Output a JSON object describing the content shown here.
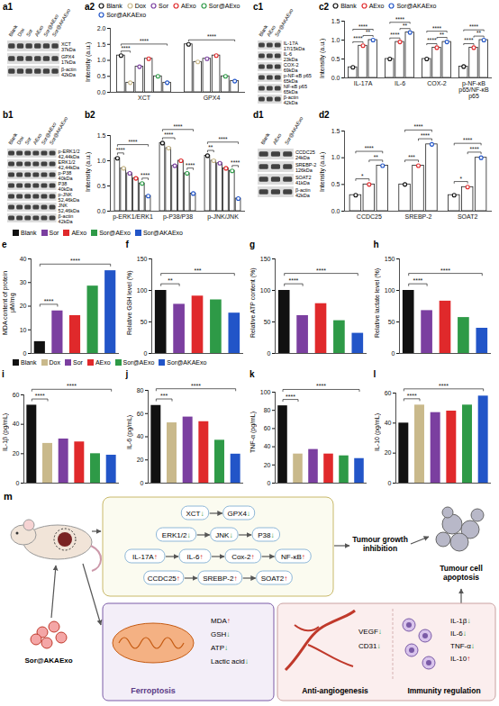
{
  "chart_data": [
    {
      "panel": "a2",
      "type": "bar",
      "ylabel": "Intensity (a.u.)",
      "legend": "top",
      "marker": "circle",
      "categories": [
        "XCT",
        "GPX4"
      ],
      "series": [
        {
          "name": "Blank",
          "color": "#111111",
          "values": [
            1.15,
            1.5
          ]
        },
        {
          "name": "Dox",
          "color": "#c9b98b",
          "values": [
            0.3,
            0.95
          ]
        },
        {
          "name": "Sor",
          "color": "#7b3fa0",
          "values": [
            0.8,
            1.05
          ]
        },
        {
          "name": "AExo",
          "color": "#e0292b",
          "values": [
            1.05,
            1.15
          ]
        },
        {
          "name": "Sor@AExo",
          "color": "#2e9a47",
          "values": [
            0.5,
            0.5
          ]
        },
        {
          "name": "Sor@AKAExo",
          "color": "#2255c8",
          "values": [
            0.3,
            0.35
          ]
        }
      ],
      "ylim": [
        0,
        2
      ],
      "yticks": [
        {
          "value": 0,
          "label": "0.0"
        },
        0.5,
        {
          "value": 1,
          "label": "1.0"
        },
        1.5,
        {
          "value": 2,
          "label": "2.0"
        }
      ],
      "significance": [
        {
          "category": "XCT",
          "from": "Blank",
          "to": "Dox",
          "label": "****"
        },
        {
          "category": "XCT",
          "from": "Blank",
          "to": "Sor@AKAExo",
          "label": "****"
        },
        {
          "category": "GPX4",
          "from": "Blank",
          "to": "Sor@AKAExo",
          "label": "****"
        }
      ]
    },
    {
      "panel": "b2",
      "type": "bar",
      "ylabel": "Intensity (a.u.)",
      "marker": "circle",
      "categories": [
        "p-ERK1/ERK1",
        "p-P38/P38",
        "p-JNK/JNK"
      ],
      "series": [
        {
          "name": "Blank",
          "color": "#111111",
          "values": [
            1.05,
            1.35,
            1.1
          ]
        },
        {
          "name": "Dox",
          "color": "#c9b98b",
          "values": [
            0.85,
            1.25,
            1.0
          ]
        },
        {
          "name": "Sor",
          "color": "#7b3fa0",
          "values": [
            0.75,
            0.9,
            0.95
          ]
        },
        {
          "name": "AExo",
          "color": "#e0292b",
          "values": [
            0.65,
            1.0,
            0.85
          ]
        },
        {
          "name": "Sor@AExo",
          "color": "#2e9a47",
          "values": [
            0.55,
            0.75,
            0.8
          ]
        },
        {
          "name": "Sor@AKAExo",
          "color": "#2255c8",
          "values": [
            0.3,
            0.35,
            0.25
          ]
        }
      ],
      "ylim": [
        0,
        1.5
      ],
      "yticks": [
        {
          "value": 0,
          "label": "0.0"
        },
        0.5,
        {
          "value": 1,
          "label": "1.0"
        },
        1.5
      ],
      "significance": [
        {
          "category": "p-ERK1/ERK1",
          "from": "Blank",
          "to": "Dox",
          "label": "****"
        },
        {
          "category": "p-ERK1/ERK1",
          "from": "Blank",
          "to": "Sor@AKAExo",
          "label": "****"
        },
        {
          "category": "p-ERK1/ERK1",
          "from": "Sor@AExo",
          "to": "Sor@AKAExo",
          "label": "****"
        },
        {
          "category": "p-P38/P38",
          "from": "Blank",
          "to": "Sor",
          "label": "****"
        },
        {
          "category": "p-P38/P38",
          "from": "Blank",
          "to": "Sor@AKAExo",
          "label": "****"
        },
        {
          "category": "p-P38/P38",
          "from": "Sor@AExo",
          "to": "Sor@AKAExo",
          "label": "****"
        },
        {
          "category": "p-JNK/JNK",
          "from": "Blank",
          "to": "Dox",
          "label": "**"
        },
        {
          "category": "p-JNK/JNK",
          "from": "Blank",
          "to": "Sor@AKAExo",
          "label": "****"
        },
        {
          "category": "p-JNK/JNK",
          "from": "Sor@AExo",
          "to": "Sor@AKAExo",
          "label": "****"
        }
      ]
    },
    {
      "panel": "c2",
      "type": "bar",
      "ylabel": "Intensity (a.u.)",
      "legend": "top",
      "marker": "circle",
      "categories": [
        "IL-17A",
        "IL-6",
        "COX-2",
        "p-NF-κB p65/NF-κB p65"
      ],
      "series": [
        {
          "name": "Blank",
          "color": "#111111",
          "values": [
            0.28,
            0.5,
            0.5,
            0.3
          ]
        },
        {
          "name": "AExo",
          "color": "#e0292b",
          "values": [
            0.85,
            0.95,
            0.8,
            0.8
          ]
        },
        {
          "name": "Sor@AKAExo",
          "color": "#2255c8",
          "values": [
            1.0,
            1.2,
            0.95,
            1.0
          ]
        }
      ],
      "ylim": [
        0,
        1.5
      ],
      "yticks": [
        {
          "value": 0,
          "label": "0.0"
        },
        0.5,
        {
          "value": 1,
          "label": "1.0"
        },
        1.5
      ],
      "significance": [
        {
          "category": "IL-17A",
          "from": "Blank",
          "to": "AExo",
          "label": "****"
        },
        {
          "category": "IL-17A",
          "from": "Blank",
          "to": "Sor@AKAExo",
          "label": "****"
        },
        {
          "category": "IL-17A",
          "from": "AExo",
          "to": "Sor@AKAExo",
          "label": "**"
        },
        {
          "category": "IL-6",
          "from": "Blank",
          "to": "AExo",
          "label": "****"
        },
        {
          "category": "IL-6",
          "from": "Blank",
          "to": "Sor@AKAExo",
          "label": "****"
        },
        {
          "category": "IL-6",
          "from": "AExo",
          "to": "Sor@AKAExo",
          "label": "**"
        },
        {
          "category": "COX-2",
          "from": "Blank",
          "to": "AExo",
          "label": "****"
        },
        {
          "category": "COX-2",
          "from": "Blank",
          "to": "Sor@AKAExo",
          "label": "****"
        },
        {
          "category": "COX-2",
          "from": "AExo",
          "to": "Sor@AKAExo",
          "label": "**"
        },
        {
          "category": "p-NF-κB p65/NF-κB p65",
          "from": "Blank",
          "to": "AExo",
          "label": "****"
        },
        {
          "category": "p-NF-κB p65/NF-κB p65",
          "from": "Blank",
          "to": "Sor@AKAExo",
          "label": "****"
        },
        {
          "category": "p-NF-κB p65/NF-κB p65",
          "from": "AExo",
          "to": "Sor@AKAExo",
          "label": "**"
        }
      ]
    },
    {
      "panel": "d2",
      "type": "bar",
      "ylabel": "Intensity (a.u.)",
      "marker": "circle",
      "categories": [
        "CCDC25",
        "SREBP-2",
        "SOAT2"
      ],
      "series": [
        {
          "name": "Blank",
          "color": "#111111",
          "values": [
            0.3,
            0.5,
            0.3
          ]
        },
        {
          "name": "AExo",
          "color": "#e0292b",
          "values": [
            0.5,
            0.85,
            0.45
          ]
        },
        {
          "name": "Sor@AKAExo",
          "color": "#2255c8",
          "values": [
            0.85,
            1.25,
            1.0
          ]
        }
      ],
      "ylim": [
        0,
        1.5
      ],
      "yticks": [
        {
          "value": 0,
          "label": "0.0"
        },
        0.5,
        {
          "value": 1,
          "label": "1.0"
        },
        1.5
      ],
      "significance": [
        {
          "category": "CCDC25",
          "from": "Blank",
          "to": "AExo",
          "label": "*"
        },
        {
          "category": "CCDC25",
          "from": "Blank",
          "to": "Sor@AKAExo",
          "label": "****"
        },
        {
          "category": "CCDC25",
          "from": "AExo",
          "to": "Sor@AKAExo",
          "label": "**"
        },
        {
          "category": "SREBP-2",
          "from": "Blank",
          "to": "AExo",
          "label": "***"
        },
        {
          "category": "SREBP-2",
          "from": "Blank",
          "to": "Sor@AKAExo",
          "label": "****"
        },
        {
          "category": "SREBP-2",
          "from": "AExo",
          "to": "Sor@AKAExo",
          "label": "****"
        },
        {
          "category": "SOAT2",
          "from": "Blank",
          "to": "AExo",
          "label": "*"
        },
        {
          "category": "SOAT2",
          "from": "Blank",
          "to": "Sor@AKAExo",
          "label": "****"
        },
        {
          "category": "SOAT2",
          "from": "AExo",
          "to": "Sor@AKAExo",
          "label": "****"
        }
      ]
    },
    {
      "panel": "e",
      "type": "bar",
      "ylabel": "MDA content of protein μM/mg",
      "legend": "top",
      "tick_labels": "y",
      "categories": [
        "Blank",
        "Sor",
        "AExo",
        "Sor@AExo",
        "Sor@AKAExo"
      ],
      "colors": [
        "#111111",
        "#7b3fa0",
        "#e0292b",
        "#2e9a47",
        "#2255c8"
      ],
      "values": [
        5,
        18,
        16,
        28.5,
        35
      ],
      "ylim": [
        0,
        40
      ],
      "yticks": [
        0,
        10,
        20,
        30,
        40
      ],
      "significance": [
        {
          "from": "Blank",
          "to": "Sor",
          "label": "****"
        },
        {
          "from": "Blank",
          "to": "Sor@AKAExo",
          "label": "****"
        }
      ]
    },
    {
      "panel": "f",
      "type": "bar",
      "ylabel": "Relative GSH level (%)",
      "tick_labels": "y",
      "categories": [
        "Blank",
        "Sor",
        "AExo",
        "Sor@AExo",
        "Sor@AKAExo"
      ],
      "colors": [
        "#111111",
        "#7b3fa0",
        "#e0292b",
        "#2e9a47",
        "#2255c8"
      ],
      "values": [
        100,
        78,
        91,
        85,
        64
      ],
      "ylim": [
        0,
        150
      ],
      "yticks": [
        0,
        50,
        100,
        150
      ],
      "significance": [
        {
          "from": "Blank",
          "to": "Sor",
          "label": "**"
        },
        {
          "from": "Blank",
          "to": "Sor@AKAExo",
          "label": "***"
        }
      ]
    },
    {
      "panel": "g",
      "type": "bar",
      "ylabel": "Relative ATP content (%)",
      "tick_labels": "y",
      "categories": [
        "Blank",
        "Sor",
        "AExo",
        "Sor@AExo",
        "Sor@AKAExo"
      ],
      "colors": [
        "#111111",
        "#7b3fa0",
        "#e0292b",
        "#2e9a47",
        "#2255c8"
      ],
      "values": [
        100,
        60,
        79,
        52,
        32
      ],
      "ylim": [
        0,
        150
      ],
      "yticks": [
        0,
        50,
        100,
        150
      ],
      "significance": [
        {
          "from": "Blank",
          "to": "Sor",
          "label": "****"
        },
        {
          "from": "Blank",
          "to": "Sor@AKAExo",
          "label": "****"
        }
      ]
    },
    {
      "panel": "h",
      "type": "bar",
      "ylabel": "Relative lactate level (%)",
      "tick_labels": "y",
      "categories": [
        "Blank",
        "Sor",
        "AExo",
        "Sor@AExo",
        "Sor@AKAExo"
      ],
      "colors": [
        "#111111",
        "#7b3fa0",
        "#e0292b",
        "#2e9a47",
        "#2255c8"
      ],
      "values": [
        100,
        68,
        83,
        57,
        40
      ],
      "ylim": [
        0,
        150
      ],
      "yticks": [
        0,
        50,
        100,
        150
      ],
      "significance": [
        {
          "from": "Blank",
          "to": "Sor",
          "label": "****"
        },
        {
          "from": "Blank",
          "to": "Sor@AKAExo",
          "label": "****"
        }
      ]
    },
    {
      "panel": "i",
      "type": "bar",
      "ylabel": "IL-1β (pg/mL)",
      "legend": "top",
      "tick_labels": "y",
      "categories": [
        "Blank",
        "Dox",
        "Sor",
        "AExo",
        "Sor@AExo",
        "Sor@AKAExo"
      ],
      "colors": [
        "#111111",
        "#c9b98b",
        "#7b3fa0",
        "#e0292b",
        "#2e9a47",
        "#2255c8"
      ],
      "values": [
        53,
        27,
        30,
        28,
        20,
        19
      ],
      "ylim": [
        0,
        60
      ],
      "yticks": [
        0,
        20,
        40,
        60
      ],
      "significance": [
        {
          "from": "Blank",
          "to": "Dox",
          "label": "****"
        },
        {
          "from": "Blank",
          "to": "Sor@AKAExo",
          "label": "****"
        }
      ]
    },
    {
      "panel": "j",
      "type": "bar",
      "ylabel": "IL-6 (pg/mL)",
      "tick_labels": "y",
      "categories": [
        "Blank",
        "Dox",
        "Sor",
        "AExo",
        "Sor@AExo",
        "Sor@AKAExo"
      ],
      "colors": [
        "#111111",
        "#c9b98b",
        "#7b3fa0",
        "#e0292b",
        "#2e9a47",
        "#2255c8"
      ],
      "values": [
        67,
        52,
        57,
        53,
        37,
        25
      ],
      "ylim": [
        0,
        80
      ],
      "yticks": [
        0,
        20,
        40,
        60,
        80
      ],
      "significance": [
        {
          "from": "Blank",
          "to": "Dox",
          "label": "***"
        },
        {
          "from": "Blank",
          "to": "Sor@AKAExo",
          "label": "****"
        }
      ]
    },
    {
      "panel": "k",
      "type": "bar",
      "ylabel": "TNF-α (pg/mL)",
      "tick_labels": "y",
      "categories": [
        "Blank",
        "Dox",
        "Sor",
        "AExo",
        "Sor@AExo",
        "Sor@AKAExo"
      ],
      "colors": [
        "#111111",
        "#c9b98b",
        "#7b3fa0",
        "#e0292b",
        "#2e9a47",
        "#2255c8"
      ],
      "values": [
        85,
        32,
        37,
        32,
        30,
        27
      ],
      "ylim": [
        0,
        100
      ],
      "yticks": [
        0,
        20,
        40,
        60,
        80,
        100
      ],
      "significance": [
        {
          "from": "Blank",
          "to": "Dox",
          "label": "****"
        },
        {
          "from": "Blank",
          "to": "Sor@AKAExo",
          "label": "****"
        }
      ]
    },
    {
      "panel": "l",
      "type": "bar",
      "ylabel": "IL-10 (pg/mL)",
      "tick_labels": "y",
      "categories": [
        "Blank",
        "Dox",
        "Sor",
        "AExo",
        "Sor@AExo",
        "Sor@AKAExo"
      ],
      "colors": [
        "#111111",
        "#c9b98b",
        "#7b3fa0",
        "#e0292b",
        "#2e9a47",
        "#2255c8"
      ],
      "values": [
        40,
        52,
        47,
        48,
        52,
        58
      ],
      "ylim": [
        0,
        60
      ],
      "yticks": [
        0,
        20,
        40,
        60
      ],
      "significance": [
        {
          "from": "Blank",
          "to": "Dox",
          "label": "****"
        },
        {
          "from": "Blank",
          "to": "Sor@AKAExo",
          "label": "****"
        }
      ]
    }
  ],
  "blots": [
    {
      "panel": "a1",
      "lanes": [
        "Blank",
        "Dox",
        "Sor",
        "AExo",
        "Sor@AExo",
        "Sor@AKAExo"
      ],
      "rows": [
        {
          "name": "XCT",
          "size": "37kDa"
        },
        {
          "name": "GPX4",
          "size": "17kDa"
        },
        {
          "name": "β-actin",
          "size": "42kDa"
        }
      ]
    },
    {
      "panel": "b1",
      "lanes": [
        "Blank",
        "Dox",
        "Sor",
        "AExo",
        "Sor@AExo",
        "Sor@AKAExo"
      ],
      "rows": [
        {
          "name": "p-ERK1/2",
          "size": "42,44kDa"
        },
        {
          "name": "ERK1/2",
          "size": "42,44kDa"
        },
        {
          "name": "p-P38",
          "size": "40kDa"
        },
        {
          "name": "P38",
          "size": "40kDa"
        },
        {
          "name": "p-JNK",
          "size": "52,46kDa"
        },
        {
          "name": "JNK",
          "size": "52,46kDa"
        },
        {
          "name": "β-actin",
          "size": "42kDa"
        }
      ]
    },
    {
      "panel": "c1",
      "lanes": [
        "Blank",
        "AExo",
        "Sor@AKAExo"
      ],
      "rows": [
        {
          "name": "IL-17A",
          "size": "17/15kDa"
        },
        {
          "name": "IL-6",
          "size": "23kDa"
        },
        {
          "name": "COX-2",
          "size": "69kDa"
        },
        {
          "name": "p-NF-κB p65",
          "size": "65kDa"
        },
        {
          "name": "NF-κB p65",
          "size": "65kDa"
        },
        {
          "name": "β-actin",
          "size": "42kDa"
        }
      ]
    },
    {
      "panel": "d1",
      "lanes": [
        "Blank",
        "AExo",
        "Sor@AKAExo"
      ],
      "rows": [
        {
          "name": "CCDC25",
          "size": "24kDa"
        },
        {
          "name": "SREBP-2",
          "size": "126kDa"
        },
        {
          "name": "SOAT2",
          "size": "41kDa"
        },
        {
          "name": "β-actin",
          "size": "42kDa"
        }
      ]
    }
  ],
  "schematic": {
    "panel": "m",
    "agent": "Sor@AKAExo",
    "pathways": [
      [
        "XCT↓",
        "GPX4↓"
      ],
      [
        "ERK1/2↓",
        "JNK↓",
        "P38↓"
      ],
      [
        "IL-17A↑",
        "IL-6↑",
        "Cox-2↑",
        "NF-κB↑"
      ],
      [
        "CCDC25↑",
        "SREBP-2↑",
        "SOAT2↑"
      ]
    ],
    "outcomes": [
      "Tumour growth inhibition",
      "Tumour cell apoptosis"
    ],
    "ferroptosis": {
      "title": "Ferroptosis",
      "items": [
        "MDA↑",
        "GSH↓",
        "ATP↓",
        "Lactic acid↓"
      ]
    },
    "angiogenesis": {
      "title": "Anti-angiogenesis",
      "items": [
        "VEGF↓",
        "CD31↓"
      ]
    },
    "immunity": {
      "title": "Immunity regulation",
      "items": [
        "IL-1β↓",
        "IL-6↓",
        "TNF-α↓",
        "IL-10↑"
      ]
    }
  }
}
